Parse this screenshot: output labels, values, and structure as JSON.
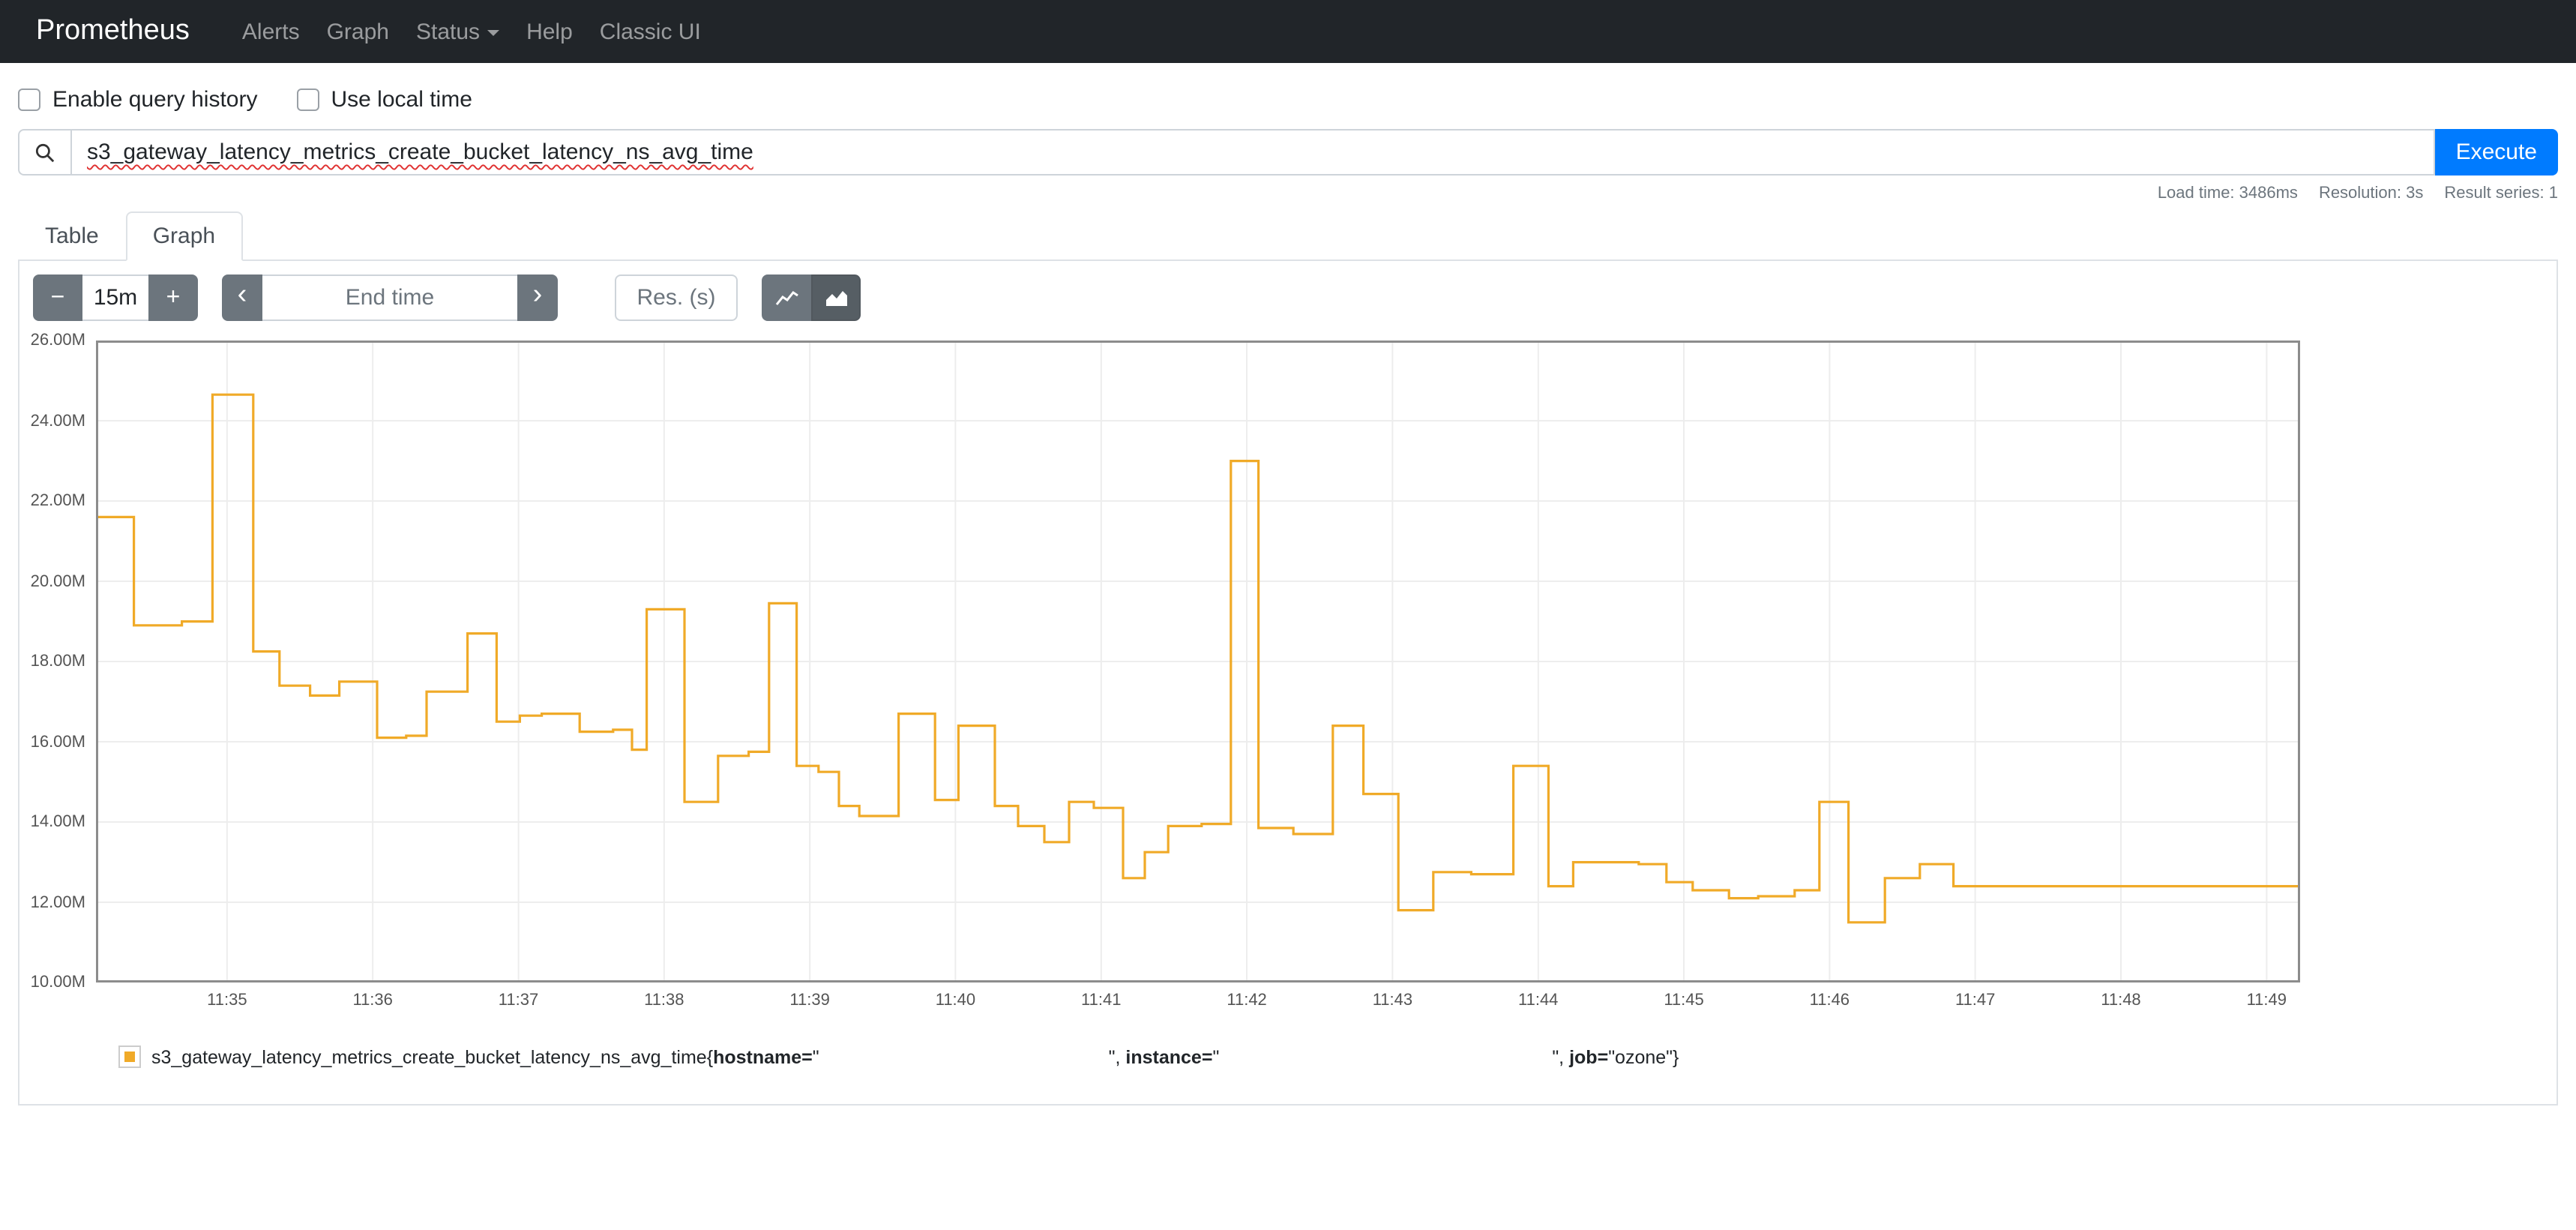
{
  "navbar": {
    "brand": "Prometheus",
    "items": [
      {
        "label": "Alerts"
      },
      {
        "label": "Graph"
      },
      {
        "label": "Status"
      },
      {
        "label": "Help"
      },
      {
        "label": "Classic UI"
      }
    ]
  },
  "options": {
    "query_history_label": "Enable query history",
    "local_time_label": "Use local time"
  },
  "query": {
    "value": "s3_gateway_latency_metrics_create_bucket_latency_ns_avg_time",
    "execute_label": "Execute"
  },
  "stats": {
    "load_time": "Load time: 3486ms",
    "resolution": "Resolution: 3s",
    "result_series": "Result series: 1"
  },
  "tabs": {
    "table": "Table",
    "graph": "Graph"
  },
  "controls": {
    "zoom_out": "−",
    "range_value": "15m",
    "zoom_in": "+",
    "prev": "‹",
    "end_time_placeholder": "End time",
    "next": "›",
    "res_placeholder": "Res. (s)"
  },
  "chart_data": {
    "type": "line",
    "title": "",
    "xlabel": "",
    "ylabel": "",
    "series_name": "s3_gateway_latency_metrics_create_bucket_latency_ns_avg_time{hostname=\"…\", instance=\"…\", job=\"ozone\"}",
    "series_color": "#f0aa28",
    "step_mode": "after",
    "grid": true,
    "legend_position": "bottom",
    "y_unit": "millions (M)",
    "ylim": [
      10,
      26
    ],
    "x_domain_minutes_after_11_34": [
      0.1,
      15.23
    ],
    "y_ticks": [
      {
        "label": "10.00M",
        "v": 10
      },
      {
        "label": "12.00M",
        "v": 12
      },
      {
        "label": "14.00M",
        "v": 14
      },
      {
        "label": "16.00M",
        "v": 16
      },
      {
        "label": "18.00M",
        "v": 18
      },
      {
        "label": "20.00M",
        "v": 20
      },
      {
        "label": "22.00M",
        "v": 22
      },
      {
        "label": "24.00M",
        "v": 24
      },
      {
        "label": "26.00M",
        "v": 26
      }
    ],
    "x_ticks": [
      {
        "label": "11:35",
        "t": 1
      },
      {
        "label": "11:36",
        "t": 2
      },
      {
        "label": "11:37",
        "t": 3
      },
      {
        "label": "11:38",
        "t": 4
      },
      {
        "label": "11:39",
        "t": 5
      },
      {
        "label": "11:40",
        "t": 6
      },
      {
        "label": "11:41",
        "t": 7
      },
      {
        "label": "11:42",
        "t": 8
      },
      {
        "label": "11:43",
        "t": 9
      },
      {
        "label": "11:44",
        "t": 10
      },
      {
        "label": "11:45",
        "t": 11
      },
      {
        "label": "11:46",
        "t": 12
      },
      {
        "label": "11:47",
        "t": 13
      },
      {
        "label": "11:48",
        "t": 14
      },
      {
        "label": "11:49",
        "t": 15
      }
    ],
    "points": [
      [
        0.1,
        21.6
      ],
      [
        0.36,
        18.9
      ],
      [
        0.69,
        19.0
      ],
      [
        0.9,
        24.65
      ],
      [
        1.18,
        18.25
      ],
      [
        1.36,
        17.4
      ],
      [
        1.57,
        17.15
      ],
      [
        1.77,
        17.5
      ],
      [
        2.03,
        16.1
      ],
      [
        2.23,
        16.15
      ],
      [
        2.37,
        17.25
      ],
      [
        2.65,
        18.7
      ],
      [
        2.85,
        16.5
      ],
      [
        3.01,
        16.65
      ],
      [
        3.16,
        16.7
      ],
      [
        3.42,
        16.25
      ],
      [
        3.65,
        16.3
      ],
      [
        3.78,
        15.8
      ],
      [
        3.88,
        19.3
      ],
      [
        4.14,
        14.5
      ],
      [
        4.37,
        15.65
      ],
      [
        4.58,
        15.75
      ],
      [
        4.72,
        19.45
      ],
      [
        4.91,
        15.4
      ],
      [
        5.06,
        15.25
      ],
      [
        5.2,
        14.4
      ],
      [
        5.34,
        14.15
      ],
      [
        5.61,
        16.7
      ],
      [
        5.86,
        14.55
      ],
      [
        6.02,
        16.4
      ],
      [
        6.27,
        14.4
      ],
      [
        6.43,
        13.9
      ],
      [
        6.61,
        13.5
      ],
      [
        6.78,
        14.5
      ],
      [
        6.95,
        14.35
      ],
      [
        7.15,
        12.6
      ],
      [
        7.3,
        13.25
      ],
      [
        7.46,
        13.9
      ],
      [
        7.69,
        13.95
      ],
      [
        7.89,
        23.0
      ],
      [
        8.08,
        13.85
      ],
      [
        8.32,
        13.7
      ],
      [
        8.59,
        16.4
      ],
      [
        8.8,
        14.7
      ],
      [
        9.04,
        11.8
      ],
      [
        9.28,
        12.75
      ],
      [
        9.54,
        12.7
      ],
      [
        9.83,
        15.4
      ],
      [
        10.07,
        12.4
      ],
      [
        10.24,
        13.0
      ],
      [
        10.69,
        12.95
      ],
      [
        10.88,
        12.5
      ],
      [
        11.06,
        12.3
      ],
      [
        11.31,
        12.1
      ],
      [
        11.51,
        12.15
      ],
      [
        11.76,
        12.3
      ],
      [
        11.93,
        14.5
      ],
      [
        12.13,
        11.5
      ],
      [
        12.38,
        12.6
      ],
      [
        12.62,
        12.95
      ],
      [
        12.85,
        12.4
      ],
      [
        15.23,
        12.4
      ]
    ]
  },
  "legend": {
    "metric": "s3_gateway_latency_metrics_create_bucket_latency_ns_avg_time{",
    "hostname_label": "hostname=",
    "hostname_open_quote": "\"",
    "mid1": "\", ",
    "instance_label": "instance=",
    "instance_open_quote": "\"",
    "mid2": "\", ",
    "job_label": "job=",
    "job_value": "\"ozone\"}"
  }
}
